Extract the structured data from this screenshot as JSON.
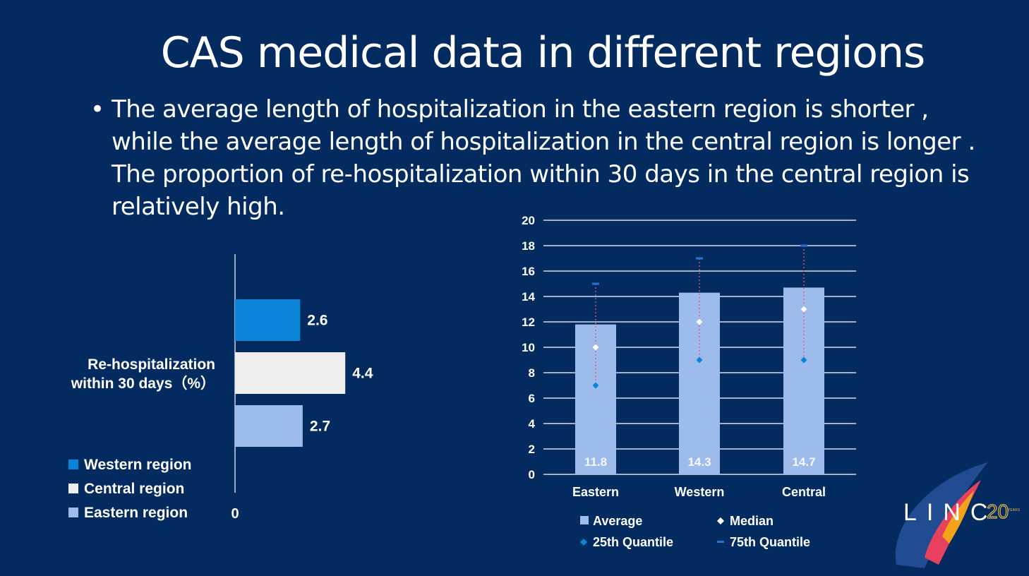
{
  "slide": {
    "title": "CAS medical data in different regions",
    "bullet": "The average length of hospitalization in the eastern region is shorter , while the average length of hospitalization in the central region is longer . The proportion of re-hospitalization within 30 days in the central region is relatively high."
  },
  "logo": {
    "text": "LINC",
    "badge": "20",
    "badge_sub": "YEARS"
  },
  "chart_data": [
    {
      "type": "bar",
      "orientation": "horizontal",
      "category_label": [
        "Re-hospitalization",
        "within 30 days（%）"
      ],
      "xlim": [
        0,
        5
      ],
      "axis_zero_label": "0",
      "series": [
        {
          "name": "Western region",
          "value": 2.6,
          "label": "2.6",
          "color": "#0a84d8"
        },
        {
          "name": "Central region",
          "value": 4.4,
          "label": "4.4",
          "color": "#eeeeee"
        },
        {
          "name": "Eastern region",
          "value": 2.7,
          "label": "2.7",
          "color": "#9dbbeb"
        }
      ],
      "legend": {
        "position": "bottom-left"
      }
    },
    {
      "type": "bar",
      "categories": [
        "Eastern",
        "Western",
        "Central"
      ],
      "ylim": [
        0,
        20
      ],
      "yticks": [
        0,
        2,
        4,
        6,
        8,
        10,
        12,
        14,
        16,
        18,
        20
      ],
      "grid": true,
      "series": [
        {
          "name": "Average",
          "kind": "bar",
          "values": [
            11.8,
            14.3,
            14.7
          ],
          "labels": [
            "11.8",
            "14.3",
            "14.7"
          ],
          "color": "#9dbbeb"
        },
        {
          "name": "Median",
          "kind": "marker",
          "values": [
            10,
            12,
            13
          ],
          "color": "#ffffff"
        },
        {
          "name": "25th Quantile",
          "kind": "marker",
          "values": [
            7,
            9,
            9
          ],
          "color": "#0a84d8"
        },
        {
          "name": "75th Quantile",
          "kind": "marker",
          "values": [
            15,
            17,
            18
          ],
          "color": "#2a6fd6"
        }
      ],
      "legend": {
        "position": "bottom"
      }
    }
  ]
}
